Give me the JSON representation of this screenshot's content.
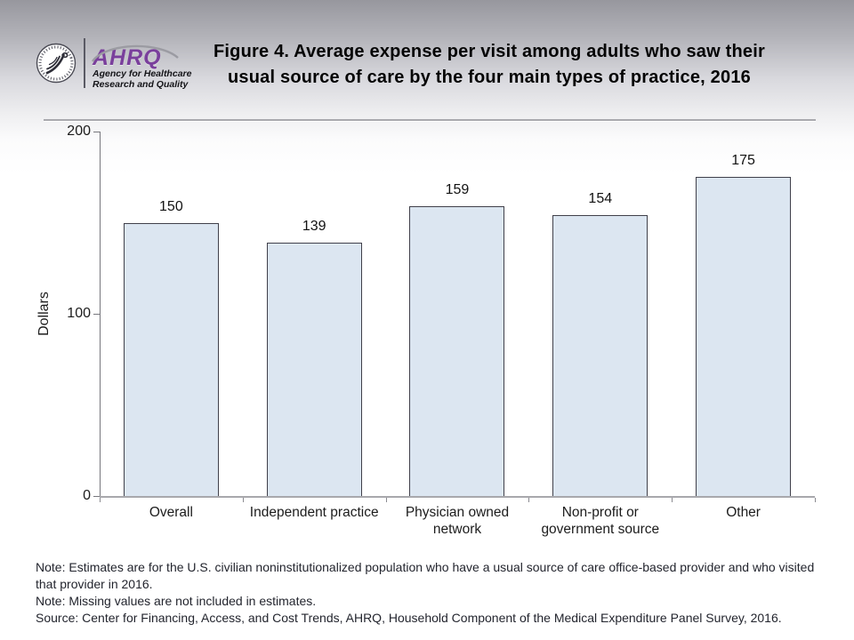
{
  "header": {
    "hhs_logo": "hhs-eagle-seal",
    "ahrq_logo": {
      "acronym": "AHRQ",
      "tagline_line1": "Agency for Healthcare",
      "tagline_line2": "Research and Quality"
    },
    "title_line1": "Figure 4. Average expense per visit among adults who saw their",
    "title_line2": "usual source of care by the four main types of practice, 2016"
  },
  "chart_data": {
    "type": "bar",
    "title": "Figure 4. Average expense per visit among adults who saw their usual source of care by the four main types of practice, 2016",
    "categories": [
      "Overall",
      "Independent practice",
      "Physician owned network",
      "Non-profit or government source",
      "Other"
    ],
    "values": [
      150,
      139,
      159,
      154,
      175
    ],
    "xlabel": "",
    "ylabel": "Dollars",
    "ylim": [
      0,
      200
    ],
    "yticks": [
      0,
      100,
      200
    ],
    "grid": false,
    "legend": false,
    "bar_fill_color": "#dce6f1",
    "bar_border_color": "#40404a"
  },
  "notes": {
    "note1": "Note: Estimates are for the U.S. civilian noninstitutionalized population who have a usual source of care office-based provider and who visited that provider in 2016.",
    "note2": "Note: Missing values are not included in estimates.",
    "source": "Source: Center for Financing, Access, and Cost Trends, AHRQ, Household Component of the Medical Expenditure Panel Survey, 2016."
  }
}
